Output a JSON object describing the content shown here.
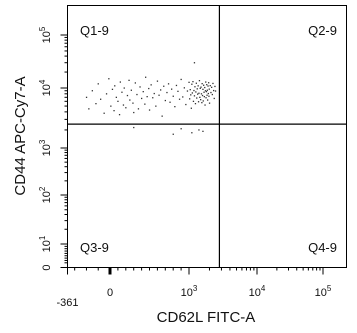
{
  "chart_data": {
    "type": "scatter",
    "xlabel": "CD62L FITC-A",
    "ylabel": "CD44 APC-Cy7-A",
    "x_scale": "biexponential",
    "y_scale": "biexponential",
    "xlim": [
      -361,
      180000
    ],
    "ylim": [
      0,
      180000
    ],
    "x_ticks": [
      {
        "label": "-361",
        "value": -361
      },
      {
        "label": "0",
        "value": 0
      },
      {
        "label": "10",
        "sup": "3",
        "value": 1000
      },
      {
        "label": "10",
        "sup": "4",
        "value": 10000
      },
      {
        "label": "10",
        "sup": "5",
        "value": 100000
      }
    ],
    "y_ticks": [
      {
        "label": "0",
        "value": 0
      },
      {
        "label": "10",
        "sup": "1",
        "value": 10
      },
      {
        "label": "10",
        "sup": "2",
        "value": 100
      },
      {
        "label": "10",
        "sup": "3",
        "value": 1000
      },
      {
        "label": "10",
        "sup": "4",
        "value": 10000
      },
      {
        "label": "10",
        "sup": "5",
        "value": 100000
      }
    ],
    "gate": {
      "x": 2800,
      "y": 2500
    },
    "quadrants": [
      {
        "label": "Q1-9",
        "position": "top-left"
      },
      {
        "label": "Q2-9",
        "position": "top-right"
      },
      {
        "label": "Q3-9",
        "position": "bottom-left"
      },
      {
        "label": "Q4-9",
        "position": "bottom-right"
      }
    ],
    "points": [
      [
        -200,
        7000
      ],
      [
        -180,
        4500
      ],
      [
        -150,
        9000
      ],
      [
        -120,
        5500
      ],
      [
        -100,
        12000
      ],
      [
        -80,
        6500
      ],
      [
        -50,
        3800
      ],
      [
        -30,
        8000
      ],
      [
        -10,
        15000
      ],
      [
        10,
        5000
      ],
      [
        30,
        9500
      ],
      [
        50,
        4200
      ],
      [
        60,
        11000
      ],
      [
        80,
        7000
      ],
      [
        100,
        6000
      ],
      [
        120,
        3600
      ],
      [
        130,
        13000
      ],
      [
        150,
        8500
      ],
      [
        170,
        5200
      ],
      [
        180,
        10000
      ],
      [
        200,
        4700
      ],
      [
        220,
        7500
      ],
      [
        240,
        14000
      ],
      [
        250,
        6300
      ],
      [
        270,
        9200
      ],
      [
        290,
        5600
      ],
      [
        300,
        3900
      ],
      [
        320,
        12500
      ],
      [
        340,
        7800
      ],
      [
        360,
        4500
      ],
      [
        380,
        10500
      ],
      [
        400,
        6700
      ],
      [
        420,
        8700
      ],
      [
        440,
        5400
      ],
      [
        450,
        16000
      ],
      [
        470,
        7200
      ],
      [
        490,
        9800
      ],
      [
        500,
        4300
      ],
      [
        520,
        11500
      ],
      [
        540,
        6900
      ],
      [
        560,
        8100
      ],
      [
        580,
        5000
      ],
      [
        600,
        13500
      ],
      [
        620,
        7600
      ],
      [
        640,
        9300
      ],
      [
        660,
        3400
      ],
      [
        680,
        10800
      ],
      [
        700,
        6200
      ],
      [
        720,
        8400
      ],
      [
        740,
        12000
      ],
      [
        760,
        5800
      ],
      [
        780,
        9600
      ],
      [
        800,
        7300
      ],
      [
        820,
        4900
      ],
      [
        840,
        11200
      ],
      [
        860,
        8800
      ],
      [
        880,
        6500
      ],
      [
        900,
        14500
      ],
      [
        920,
        7100
      ],
      [
        940,
        10100
      ],
      [
        960,
        5300
      ],
      [
        980,
        8900
      ],
      [
        1000,
        12800
      ],
      [
        1020,
        6600
      ],
      [
        1040,
        9400
      ],
      [
        1060,
        7700
      ],
      [
        1080,
        4600
      ],
      [
        1100,
        11800
      ],
      [
        1120,
        8300
      ],
      [
        1140,
        13200
      ],
      [
        1160,
        6000
      ],
      [
        1180,
        9100
      ],
      [
        1200,
        7400
      ],
      [
        1220,
        10600
      ],
      [
        1240,
        5500
      ],
      [
        1260,
        8600
      ],
      [
        1280,
        12300
      ],
      [
        1300,
        6800
      ],
      [
        1320,
        9700
      ],
      [
        1340,
        7900
      ],
      [
        1360,
        11000
      ],
      [
        1380,
        5900
      ],
      [
        1400,
        8200
      ],
      [
        1420,
        13800
      ],
      [
        1440,
        7000
      ],
      [
        1460,
        9900
      ],
      [
        1480,
        6400
      ],
      [
        1500,
        10400
      ],
      [
        1520,
        8000
      ],
      [
        1540,
        5700
      ],
      [
        1560,
        12100
      ],
      [
        1580,
        7500
      ],
      [
        1600,
        9500
      ],
      [
        1620,
        6100
      ],
      [
        1640,
        11300
      ],
      [
        1660,
        8500
      ],
      [
        1680,
        7200
      ],
      [
        1700,
        10200
      ],
      [
        1720,
        5200
      ],
      [
        1740,
        9000
      ],
      [
        1760,
        13000
      ],
      [
        1780,
        6900
      ],
      [
        1800,
        8700
      ],
      [
        1820,
        11600
      ],
      [
        1840,
        7600
      ],
      [
        1860,
        9200
      ],
      [
        1880,
        6300
      ],
      [
        1900,
        10900
      ],
      [
        1920,
        8100
      ],
      [
        1940,
        12600
      ],
      [
        1960,
        7300
      ],
      [
        1980,
        9600
      ],
      [
        2000,
        5600
      ],
      [
        2050,
        11100
      ],
      [
        2100,
        8400
      ],
      [
        2150,
        10300
      ],
      [
        2200,
        7800
      ],
      [
        2250,
        12200
      ],
      [
        2300,
        9100
      ],
      [
        2350,
        6700
      ],
      [
        2400,
        10700
      ],
      [
        2450,
        8900
      ],
      [
        1200,
        30000
      ],
      [
        900,
        2100
      ],
      [
        1100,
        1800
      ],
      [
        1400,
        2000
      ],
      [
        800,
        1700
      ],
      [
        1600,
        1900
      ],
      [
        300,
        2200
      ]
    ]
  }
}
